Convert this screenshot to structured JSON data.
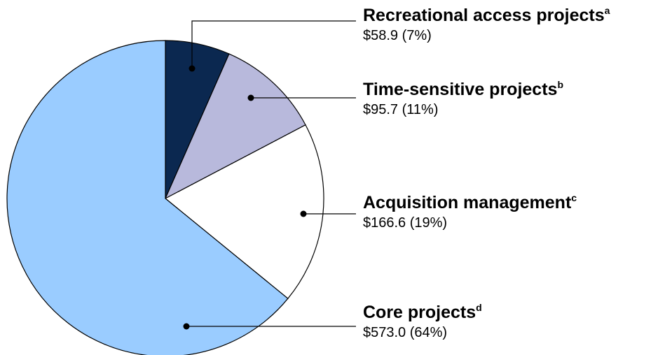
{
  "chart_data": {
    "type": "pie",
    "categories": [
      "Recreational access projects",
      "Time-sensitive projects",
      "Acquisition management",
      "Core projects"
    ],
    "notes": [
      "a",
      "b",
      "c",
      "d"
    ],
    "values": [
      58.9,
      95.7,
      166.6,
      573.0
    ],
    "value_labels": [
      "$58.9 (7%)",
      "$95.7 (11%)",
      "$166.6 (19%)",
      "$573.0 (64%)"
    ],
    "colors": [
      "#0b2850",
      "#b8b9dc",
      "#ffffff",
      "#9accff"
    ]
  }
}
